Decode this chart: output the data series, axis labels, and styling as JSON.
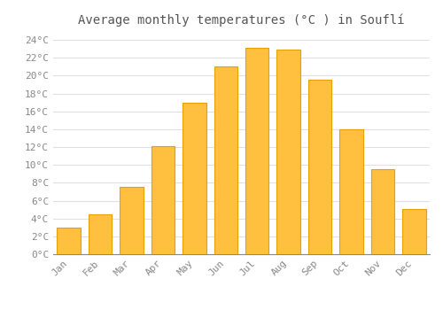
{
  "title": "Average monthly temperatures (°C ) in Souflí",
  "months": [
    "Jan",
    "Feb",
    "Mar",
    "Apr",
    "May",
    "Jun",
    "Jul",
    "Aug",
    "Sep",
    "Oct",
    "Nov",
    "Dec"
  ],
  "values": [
    3.0,
    4.5,
    7.5,
    12.1,
    17.0,
    21.0,
    23.1,
    22.9,
    19.5,
    14.0,
    9.5,
    5.1
  ],
  "bar_color_top": "#FFC040",
  "bar_color_bottom": "#FFB020",
  "bar_edge_color": "#E8A000",
  "ylim": [
    0,
    25
  ],
  "yticks": [
    0,
    2,
    4,
    6,
    8,
    10,
    12,
    14,
    16,
    18,
    20,
    22,
    24
  ],
  "background_color": "#FFFFFF",
  "grid_color": "#E0E0E0",
  "tick_label_color": "#888888",
  "title_color": "#555555",
  "title_fontsize": 10,
  "tick_fontsize": 8,
  "font_family": "monospace"
}
